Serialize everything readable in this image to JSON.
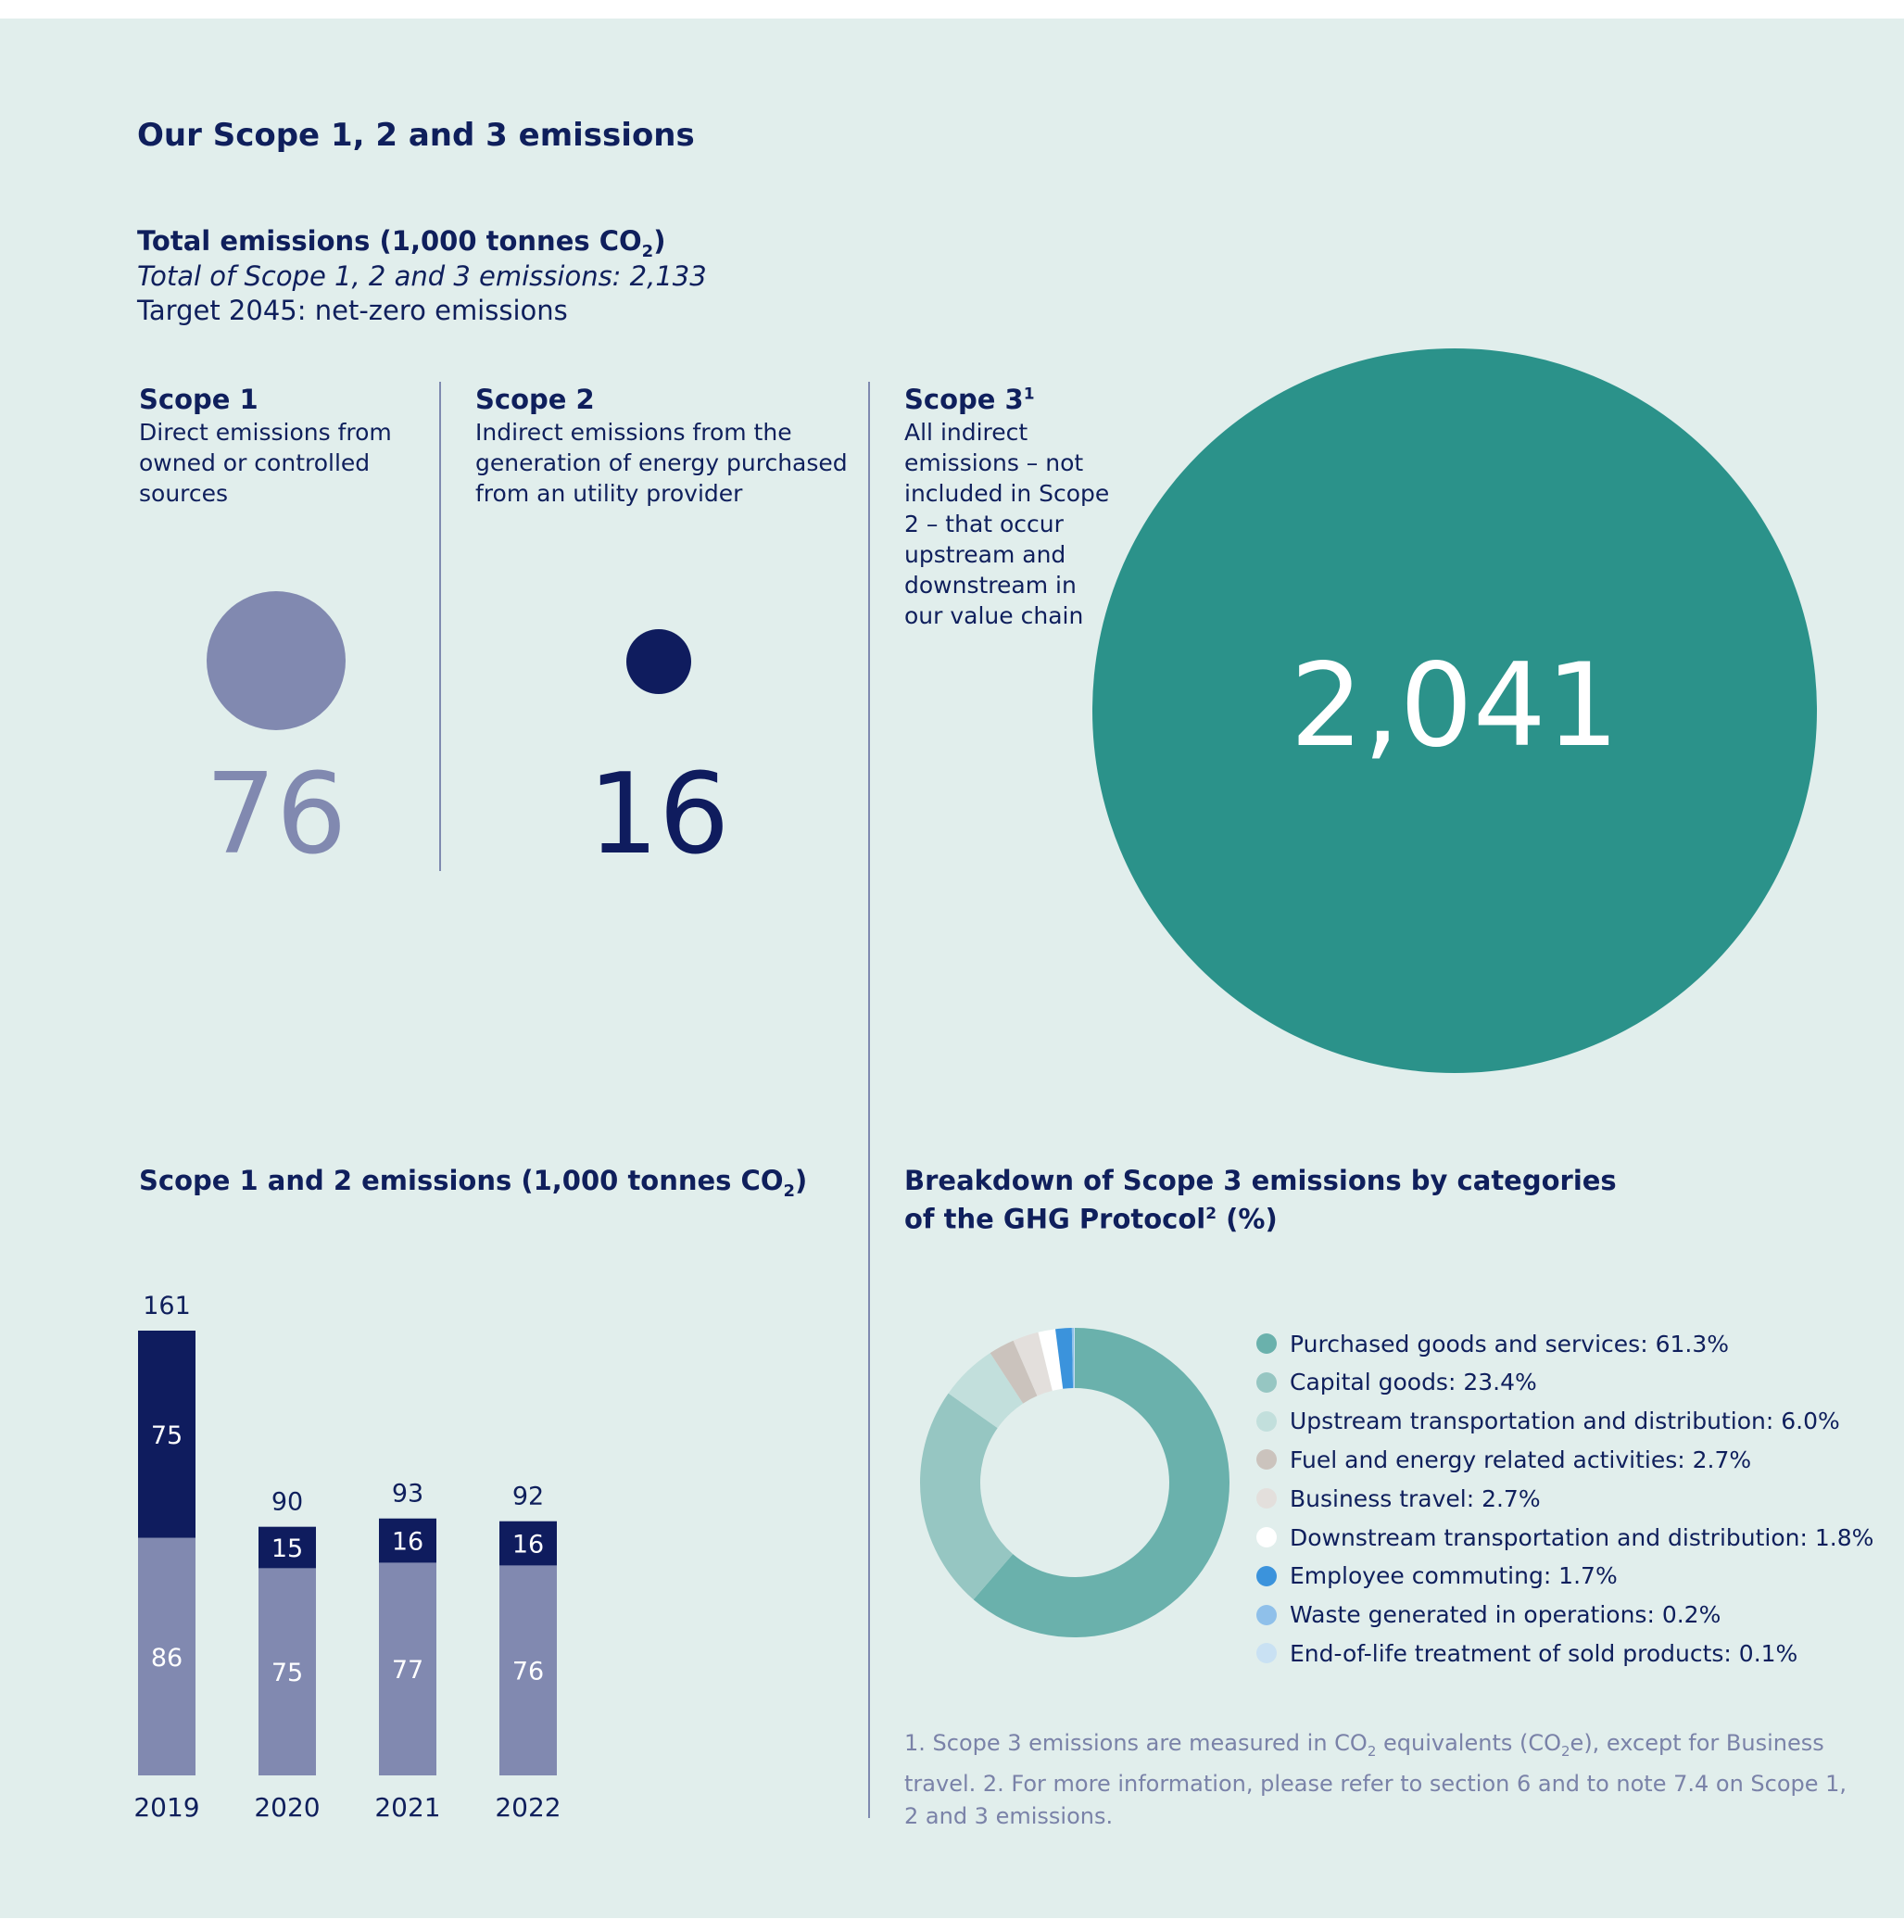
{
  "header": {
    "title": "Our Scope 1, 2 and 3 emissions",
    "total_heading_pre": "Total emissions (1,000 tonnes CO",
    "total_heading_sub": "2",
    "total_heading_post": ")",
    "total_line": "Total of Scope 1, 2 and 3 emissions: 2,133",
    "target_line": "Target 2045: net-zero emissions"
  },
  "scopes": {
    "scope1": {
      "title": "Scope 1",
      "desc": [
        "Direct emissions from",
        "owned or controlled",
        "sources"
      ],
      "value": "76",
      "color": "#8189b0"
    },
    "scope2": {
      "title": "Scope 2",
      "desc": [
        "Indirect emissions from the",
        "generation of energy purchased",
        "from an utility provider"
      ],
      "value": "16",
      "color": "#0f1c5e"
    },
    "scope3": {
      "title": "Scope 3",
      "title_sup": "1",
      "desc": [
        "All indirect",
        "emissions – not",
        "included in Scope",
        "2 – that occur",
        "upstream and",
        "downstream in",
        "our value chain"
      ],
      "value": "2,041",
      "color": "#2b928a"
    }
  },
  "bar_section": {
    "title_pre": "Scope 1 and 2 emissions (1,000 tonnes CO",
    "title_sub": "2",
    "title_post": ")"
  },
  "pie_section": {
    "title_line1": "Breakdown of Scope 3 emissions by categories",
    "title_line2_pre": "of the GHG Protocol",
    "title_line2_sup": "2",
    "title_line2_post": " (%)"
  },
  "footnote": {
    "line1_a": "1. Scope 3 emissions are measured in CO",
    "line1_sub1": "2",
    "line1_b": " equivalents (CO",
    "line1_sub2": "2",
    "line1_c": "e), except for Business",
    "line2": "travel.  2. For more information, please refer to section 6 and to note 7.4 on Scope 1,",
    "line3": "2 and 3 emissions."
  },
  "chart_data": [
    {
      "type": "bar",
      "stacked": true,
      "categories": [
        "2019",
        "2020",
        "2021",
        "2022"
      ],
      "series": [
        {
          "name": "Scope 1",
          "values": [
            86,
            75,
            77,
            76
          ],
          "color": "#8189b0"
        },
        {
          "name": "Scope 2",
          "values": [
            75,
            15,
            16,
            16
          ],
          "color": "#0f1c5e"
        }
      ],
      "totals": [
        161,
        90,
        93,
        92
      ],
      "ylim": [
        0,
        161
      ]
    },
    {
      "type": "pie",
      "donut": true,
      "slices": [
        {
          "label": "Purchased goods and services: 61.3%",
          "value": 61.3,
          "color": "#6ab1ac"
        },
        {
          "label": "Capital goods: 23.4%",
          "value": 23.4,
          "color": "#96c6c2"
        },
        {
          "label": "Upstream transportation and distribution: 6.0%",
          "value": 6.0,
          "color": "#c2dfdc"
        },
        {
          "label": "Fuel and energy related activities: 2.7%",
          "value": 2.7,
          "color": "#cbc3bd"
        },
        {
          "label": "Business travel: 2.7%",
          "value": 2.7,
          "color": "#e3dfdc"
        },
        {
          "label": "Downstream transportation and distribution: 1.8%",
          "value": 1.8,
          "color": "#ffffff"
        },
        {
          "label": "Employee commuting: 1.7%",
          "value": 1.7,
          "color": "#3b93dc"
        },
        {
          "label": "Waste generated in operations: 0.2%",
          "value": 0.2,
          "color": "#8fc0ea"
        },
        {
          "label": "End-of-life treatment of sold products: 0.1%",
          "value": 0.1,
          "color": "#c9e1f3"
        }
      ]
    }
  ]
}
